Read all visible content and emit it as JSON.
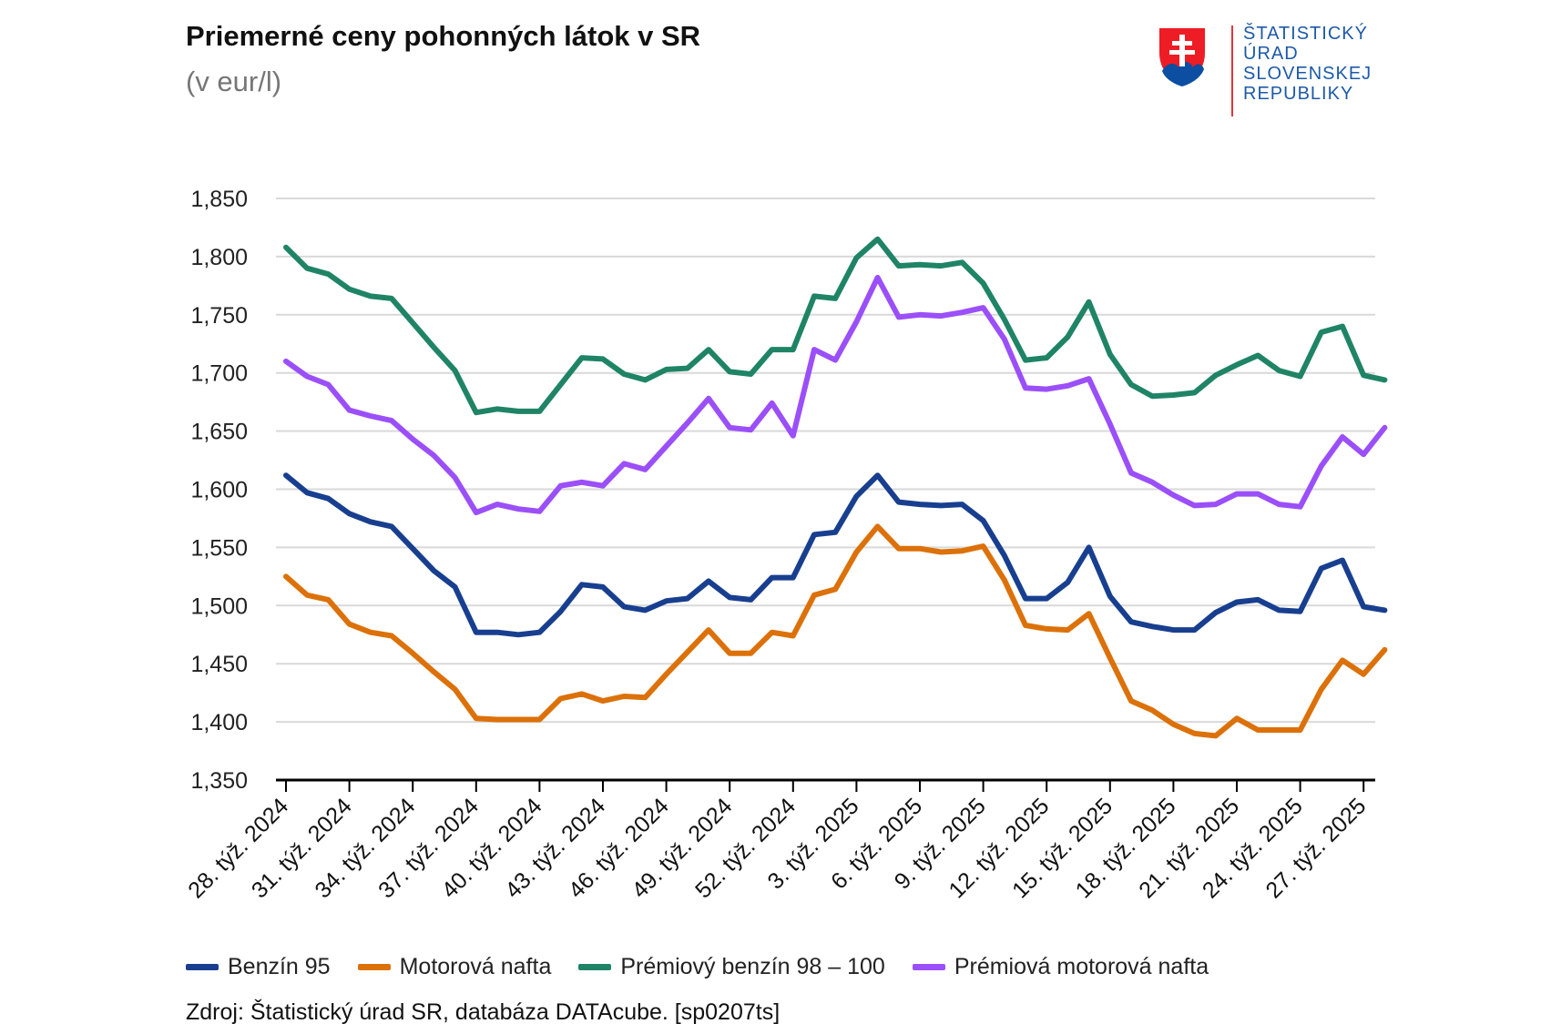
{
  "header": {
    "title": "Priemerné ceny pohonných látok v SR",
    "subtitle": "(v eur/l)"
  },
  "logo": {
    "lines": [
      "ŠTATISTICKÝ",
      "ÚRAD",
      "SLOVENSKEJ",
      "REPUBLIKY"
    ],
    "colors": {
      "red": "#ee1c25",
      "blue": "#0b4ea2",
      "white": "#ffffff",
      "text": "#1d5aa8"
    }
  },
  "footer": {
    "source": "Zdroj: Štatistický úrad SR, databáza DATAcube. [sp0207ts]"
  },
  "chart_data": {
    "type": "line",
    "title": "Priemerné ceny pohonných látok v SR",
    "ylabel": "",
    "xlabel": "",
    "ylim": [
      1.35,
      1.85
    ],
    "yticks": [
      "1,350",
      "1,400",
      "1,450",
      "1,500",
      "1,550",
      "1,600",
      "1,650",
      "1,700",
      "1,750",
      "1,800",
      "1,850"
    ],
    "grid": true,
    "legend_position": "bottom",
    "x_tick_labels": [
      "28. týž. 2024",
      "31. týž. 2024",
      "34. týž. 2024",
      "37. týž. 2024",
      "40. týž. 2024",
      "43. týž. 2024",
      "46. týž. 2024",
      "49. týž. 2024",
      "52. týž. 2024",
      "3. týž. 2025",
      "6. týž. 2025",
      "9. týž. 2025",
      "12. týž. 2025",
      "15. týž. 2025",
      "18. týž. 2025",
      "21. týž. 2025",
      "24. týž. 2025",
      "27. týž. 2025"
    ],
    "categories": [
      "28/2024",
      "29/2024",
      "30/2024",
      "31/2024",
      "32/2024",
      "33/2024",
      "34/2024",
      "35/2024",
      "36/2024",
      "37/2024",
      "38/2024",
      "39/2024",
      "40/2024",
      "41/2024",
      "42/2024",
      "43/2024",
      "44/2024",
      "45/2024",
      "46/2024",
      "47/2024",
      "48/2024",
      "49/2024",
      "50/2024",
      "51/2024",
      "52/2024",
      "1/2025",
      "2/2025",
      "3/2025",
      "4/2025",
      "5/2025",
      "6/2025",
      "7/2025",
      "8/2025",
      "9/2025",
      "10/2025",
      "11/2025",
      "12/2025",
      "13/2025",
      "14/2025",
      "15/2025",
      "16/2025",
      "17/2025",
      "18/2025",
      "19/2025",
      "20/2025",
      "21/2025",
      "22/2025",
      "23/2025",
      "24/2025",
      "25/2025",
      "26/2025",
      "27/2025",
      "28/2025"
    ],
    "series": [
      {
        "name": "Benzín 95",
        "color": "#183f8f",
        "values": [
          1.612,
          1.597,
          1.592,
          1.579,
          1.572,
          1.568,
          1.549,
          1.53,
          1.516,
          1.477,
          1.477,
          1.475,
          1.477,
          1.495,
          1.518,
          1.516,
          1.499,
          1.496,
          1.504,
          1.506,
          1.521,
          1.507,
          1.505,
          1.524,
          1.524,
          1.561,
          1.563,
          1.594,
          1.612,
          1.589,
          1.587,
          1.586,
          1.587,
          1.573,
          1.543,
          1.506,
          1.506,
          1.52,
          1.55,
          1.508,
          1.486,
          1.482,
          1.479,
          1.479,
          1.494,
          1.503,
          1.505,
          1.496,
          1.495,
          1.532,
          1.539,
          1.499,
          1.496
        ]
      },
      {
        "name": "Motorová nafta",
        "color": "#dc7109",
        "values": [
          1.525,
          1.509,
          1.505,
          1.484,
          1.477,
          1.474,
          1.459,
          1.443,
          1.428,
          1.403,
          1.402,
          1.402,
          1.402,
          1.42,
          1.424,
          1.418,
          1.422,
          1.421,
          1.441,
          1.46,
          1.479,
          1.459,
          1.459,
          1.477,
          1.474,
          1.509,
          1.514,
          1.546,
          1.568,
          1.549,
          1.549,
          1.546,
          1.547,
          1.551,
          1.522,
          1.483,
          1.48,
          1.479,
          1.493,
          1.455,
          1.418,
          1.41,
          1.398,
          1.39,
          1.388,
          1.403,
          1.393,
          1.393,
          1.393,
          1.428,
          1.453,
          1.441,
          1.462
        ]
      },
      {
        "name": "Prémiový benzín 98 – 100",
        "color": "#1f8466",
        "values": [
          1.808,
          1.79,
          1.785,
          1.772,
          1.766,
          1.764,
          1.743,
          1.722,
          1.702,
          1.666,
          1.669,
          1.667,
          1.667,
          1.69,
          1.713,
          1.712,
          1.699,
          1.694,
          1.703,
          1.704,
          1.72,
          1.701,
          1.699,
          1.72,
          1.72,
          1.766,
          1.764,
          1.799,
          1.815,
          1.792,
          1.793,
          1.792,
          1.795,
          1.777,
          1.746,
          1.711,
          1.713,
          1.731,
          1.761,
          1.716,
          1.69,
          1.68,
          1.681,
          1.683,
          1.698,
          1.707,
          1.715,
          1.702,
          1.697,
          1.735,
          1.74,
          1.698,
          1.694
        ]
      },
      {
        "name": "Prémiová motorová nafta",
        "color": "#9b4ff9",
        "values": [
          1.71,
          1.697,
          1.69,
          1.668,
          1.663,
          1.659,
          1.643,
          1.629,
          1.61,
          1.58,
          1.587,
          1.583,
          1.581,
          1.603,
          1.606,
          1.603,
          1.622,
          1.617,
          1.637,
          1.657,
          1.678,
          1.653,
          1.651,
          1.674,
          1.646,
          1.72,
          1.711,
          1.744,
          1.782,
          1.748,
          1.75,
          1.749,
          1.752,
          1.756,
          1.729,
          1.687,
          1.686,
          1.689,
          1.695,
          1.656,
          1.614,
          1.606,
          1.595,
          1.586,
          1.587,
          1.596,
          1.596,
          1.587,
          1.585,
          1.62,
          1.645,
          1.63,
          1.653
        ]
      }
    ]
  }
}
